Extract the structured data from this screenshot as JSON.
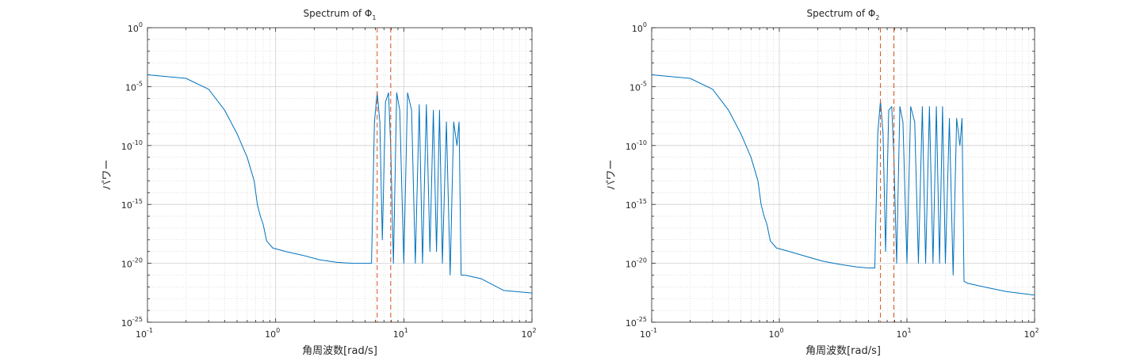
{
  "colors": {
    "series": "#0072bd",
    "marker_lines": "#d95319",
    "grid": "#cfcfcf",
    "axes": "#262626"
  },
  "chart_data": [
    {
      "type": "line",
      "title": "Spectrum of Φ",
      "title_subscript": "1",
      "xlabel": "角周波数[rad/s]",
      "ylabel": "パワー",
      "xscale": "log",
      "yscale": "log",
      "xlim": [
        0.1,
        100
      ],
      "ylim": [
        1e-25,
        1
      ],
      "xticks": [
        {
          "base": "10",
          "exp": "-1"
        },
        {
          "base": "10",
          "exp": "0"
        },
        {
          "base": "10",
          "exp": "1"
        },
        {
          "base": "10",
          "exp": "2"
        }
      ],
      "yticks": [
        {
          "base": "10",
          "exp": "0"
        },
        {
          "base": "10",
          "exp": "-5"
        },
        {
          "base": "10",
          "exp": "-10"
        },
        {
          "base": "10",
          "exp": "-15"
        },
        {
          "base": "10",
          "exp": "-20"
        },
        {
          "base": "10",
          "exp": "-25"
        }
      ],
      "grid": true,
      "vlines": [
        6.2,
        7.9
      ],
      "series": [
        {
          "x": [
            0.1,
            0.2,
            0.3,
            0.4,
            0.5,
            0.6,
            0.68,
            0.72,
            0.76,
            0.8,
            0.85,
            0.95,
            1.2,
            1.6,
            2.2,
            3,
            4,
            5,
            5.6,
            5.9,
            6.2,
            6.5,
            6.8,
            7.2,
            7.6,
            7.9,
            8.3,
            8.8,
            9.3,
            10,
            10.7,
            11.5,
            12.3,
            13.2,
            14,
            15,
            16,
            17,
            18,
            19,
            20,
            21.5,
            23,
            24.5,
            26,
            27,
            28,
            30,
            40,
            60,
            100
          ],
          "y": [
            0.0001,
            5e-05,
            6e-06,
            1e-07,
            1e-09,
            1e-11,
            1e-13,
            1e-15,
            1e-16,
            2e-17,
            8e-19,
            2e-19,
            1e-19,
            5e-20,
            2e-20,
            1.2e-20,
            1e-20,
            1e-20,
            1e-20,
            1e-08,
            3e-06,
            1e-08,
            1e-18,
            5e-07,
            3e-06,
            1e-10,
            1e-20,
            3e-06,
            1e-07,
            1e-20,
            3e-06,
            1e-07,
            1e-20,
            3e-07,
            1e-20,
            3e-07,
            1e-19,
            1e-07,
            1e-19,
            1e-07,
            1e-20,
            1e-08,
            1e-21,
            1e-08,
            1e-10,
            1e-08,
            1e-21,
            1e-21,
            5e-22,
            5e-23,
            3e-23
          ]
        }
      ]
    },
    {
      "type": "line",
      "title": "Spectrum of Φ",
      "title_subscript": "2",
      "xlabel": "角周波数[rad/s]",
      "ylabel": "パワー",
      "xscale": "log",
      "yscale": "log",
      "xlim": [
        0.1,
        100
      ],
      "ylim": [
        1e-25,
        1
      ],
      "xticks": [
        {
          "base": "10",
          "exp": "-1"
        },
        {
          "base": "10",
          "exp": "0"
        },
        {
          "base": "10",
          "exp": "1"
        },
        {
          "base": "10",
          "exp": "2"
        }
      ],
      "yticks": [
        {
          "base": "10",
          "exp": "0"
        },
        {
          "base": "10",
          "exp": "-5"
        },
        {
          "base": "10",
          "exp": "-10"
        },
        {
          "base": "10",
          "exp": "-15"
        },
        {
          "base": "10",
          "exp": "-20"
        },
        {
          "base": "10",
          "exp": "-25"
        }
      ],
      "grid": true,
      "vlines": [
        6.2,
        7.9
      ],
      "series": [
        {
          "x": [
            0.1,
            0.2,
            0.3,
            0.4,
            0.5,
            0.6,
            0.68,
            0.72,
            0.76,
            0.8,
            0.85,
            0.95,
            1.2,
            1.6,
            2.2,
            3,
            4,
            5,
            5.6,
            5.9,
            6.2,
            6.5,
            6.8,
            7.2,
            7.6,
            7.9,
            8.3,
            8.8,
            9.3,
            10,
            10.7,
            11.5,
            12.3,
            13.2,
            14,
            15,
            16,
            17,
            18,
            19,
            20,
            21.5,
            23,
            24.5,
            26,
            27,
            28,
            30,
            40,
            60,
            100
          ],
          "y": [
            0.0001,
            5e-05,
            6e-06,
            1e-07,
            1e-09,
            1e-11,
            1e-13,
            1e-15,
            1e-16,
            2e-17,
            8e-19,
            2e-19,
            1e-19,
            4e-20,
            1.5e-20,
            8e-21,
            5e-21,
            4e-21,
            4e-21,
            1e-09,
            6e-07,
            1e-09,
            1e-19,
            1e-07,
            2e-07,
            1e-11,
            1e-20,
            2e-07,
            1e-08,
            1e-20,
            2e-07,
            1e-08,
            1e-20,
            2e-07,
            1e-20,
            2e-07,
            1e-20,
            2e-07,
            1e-20,
            2e-07,
            1e-20,
            2e-08,
            1e-21,
            2e-08,
            1e-10,
            2e-08,
            3e-22,
            2e-22,
            1e-22,
            4e-23,
            2e-23
          ]
        }
      ]
    }
  ]
}
